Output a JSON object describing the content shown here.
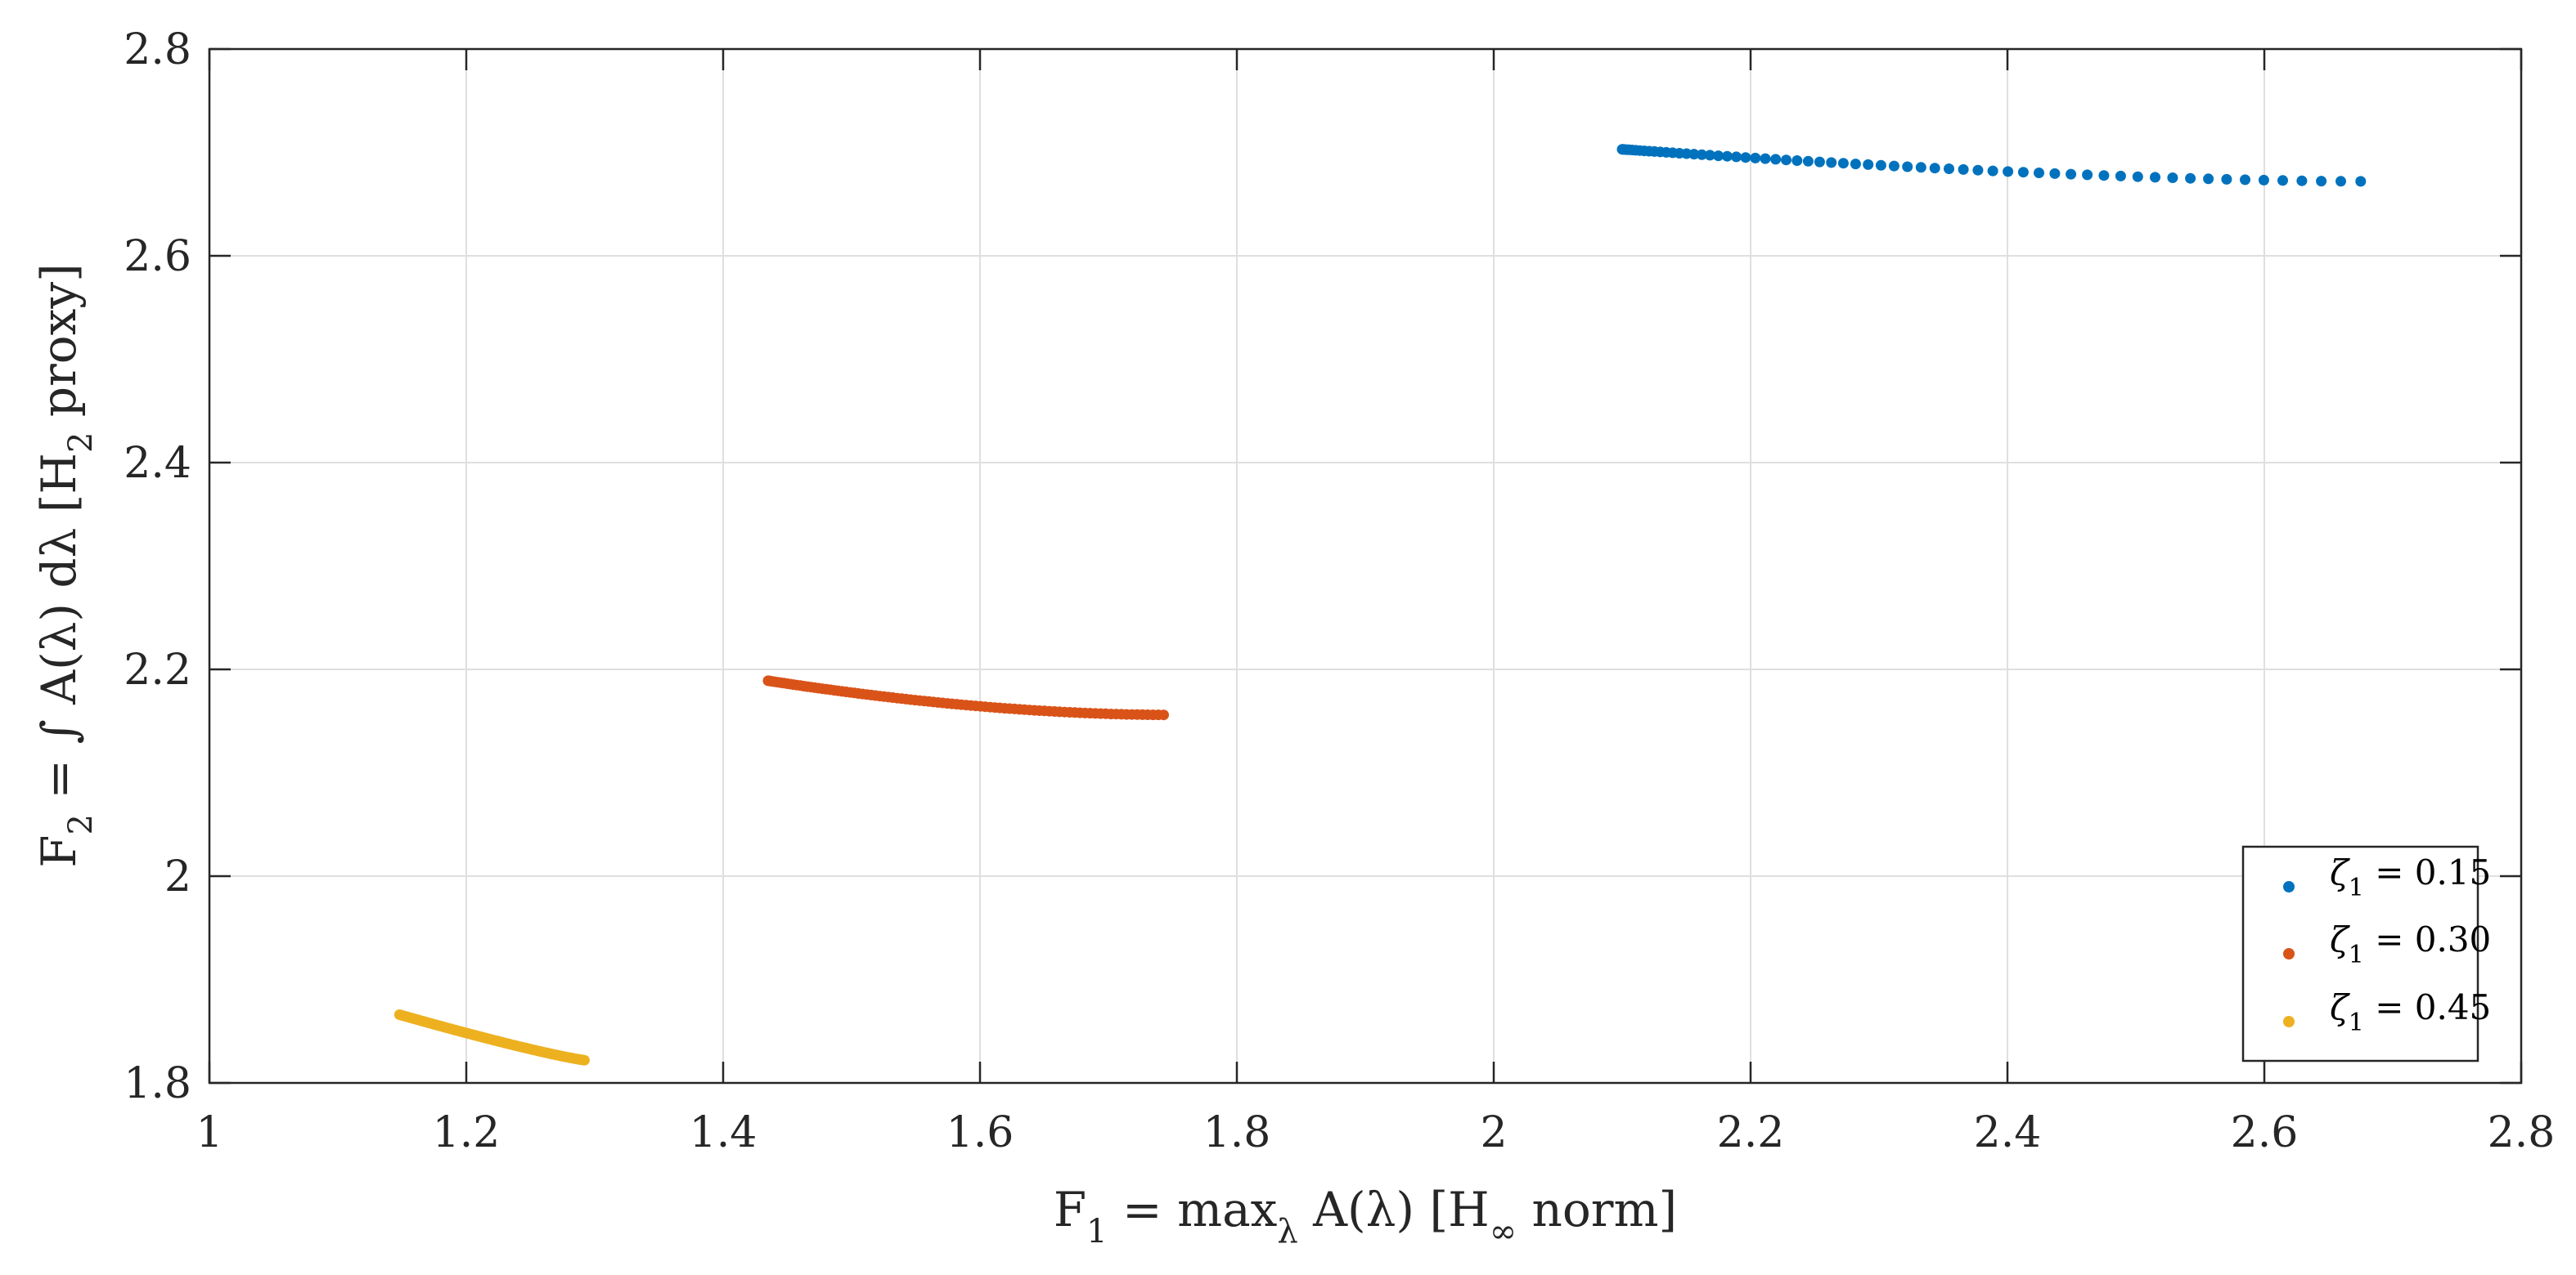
{
  "chart_data": {
    "type": "scatter",
    "xlabel": {
      "main": "F",
      "sub1": "1",
      "mid": " = max",
      "sub2": "λ",
      "rest": " A(λ)   [H",
      "sub3": "∞",
      "end": " norm]"
    },
    "ylabel": {
      "main": "F",
      "sub1": "2",
      "mid": " = ∫ A(λ) dλ   [H",
      "sub2": "2",
      "end": " proxy]"
    },
    "xlim": [
      1,
      2.8
    ],
    "ylim": [
      1.8,
      2.8
    ],
    "xticks": [
      1,
      1.2,
      1.4,
      1.6,
      1.8,
      2,
      2.2,
      2.4,
      2.6,
      2.8
    ],
    "xtick_labels": [
      "1",
      "1.2",
      "1.4",
      "1.6",
      "1.8",
      "2",
      "2.2",
      "2.4",
      "2.6",
      "2.8"
    ],
    "yticks": [
      1.8,
      2.0,
      2.2,
      2.4,
      2.6,
      2.8
    ],
    "ytick_labels": [
      "1.8",
      "2",
      "2.2",
      "2.4",
      "2.6",
      "2.8"
    ],
    "grid": true,
    "legend_position": "bottom-right",
    "series": [
      {
        "name": "0.15",
        "legend_symbol": "ζ",
        "legend_sub": "1",
        "legend_rest": " = 0.15",
        "color": "#0072BD",
        "x_range": [
          2.1,
          2.675
        ],
        "y_start": 2.703,
        "y_end": 2.672,
        "curvature": 1.6,
        "count": 64,
        "spacing_bias": 1.7
      },
      {
        "name": "0.30",
        "legend_symbol": "ζ",
        "legend_sub": "1",
        "legend_rest": " = 0.30",
        "color": "#D95319",
        "x_range": [
          1.435,
          1.743
        ],
        "y_start": 2.189,
        "y_end": 2.156,
        "curvature": 1.8,
        "count": 90,
        "spacing_bias": 1.2
      },
      {
        "name": "0.45",
        "legend_symbol": "ζ",
        "legend_sub": "1",
        "legend_rest": " = 0.45",
        "color": "#EDB120",
        "x_range": [
          1.148,
          1.292
        ],
        "y_start": 1.866,
        "y_end": 1.822,
        "curvature": 1.15,
        "count": 80,
        "spacing_bias": 1.0
      }
    ]
  }
}
